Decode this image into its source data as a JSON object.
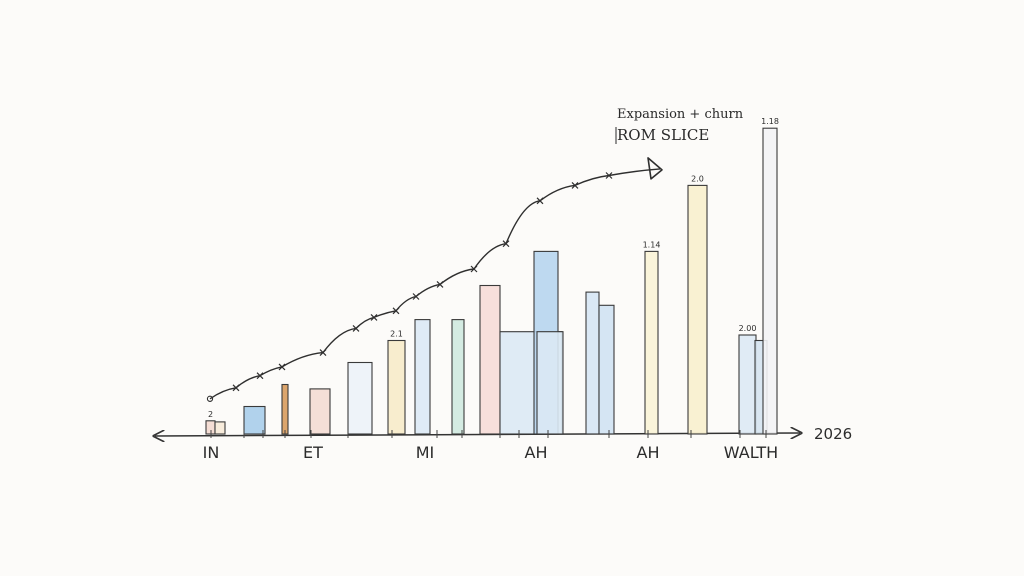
{
  "chart_data": {
    "type": "bar",
    "title": "Expansion + churn",
    "subtitle": "ROM SLICE",
    "x_end_label": "2026",
    "category_labels": [
      "IN",
      "ET",
      "MI",
      "AH",
      "AH",
      "WALTH"
    ],
    "ylim": [
      0,
      300
    ],
    "bars": [
      {
        "value": 12,
        "color": "#f4d9cf"
      },
      {
        "value": 11,
        "color": "#f7ead8"
      },
      {
        "value": 25,
        "color": "#a9cdea"
      },
      {
        "value": 45,
        "color": "#d89b5c"
      },
      {
        "value": 41,
        "color": "#f4dcd3"
      },
      {
        "value": 65,
        "color": "#ecf2f8"
      },
      {
        "value": 85,
        "color": "#f7ebc9"
      },
      {
        "value": 104,
        "color": "#dbe9f5"
      },
      {
        "value": 104,
        "color": "#cfe9df"
      },
      {
        "value": 135,
        "color": "#f6dcd7"
      },
      {
        "value": 93,
        "color": "#dce9f4"
      },
      {
        "value": 166,
        "color": "#b7d5ee"
      },
      {
        "value": 93,
        "color": "#dce9f4"
      },
      {
        "value": 129,
        "color": "#d6e6f4"
      },
      {
        "value": 117,
        "color": "#d0e2f2"
      },
      {
        "value": 166,
        "color": "#faf3d6"
      },
      {
        "value": 226,
        "color": "#f8efcd"
      },
      {
        "value": 90,
        "color": "#dde9f4"
      },
      {
        "value": 85,
        "color": "#d5e3f0"
      },
      {
        "value": 278,
        "color": "#f3f3f5"
      }
    ],
    "bar_labels": [
      {
        "bar": 0,
        "text": "2"
      },
      {
        "bar": 6,
        "text": "2.1"
      },
      {
        "bar": 15,
        "text": "1.14"
      },
      {
        "bar": 16,
        "text": "2.0"
      },
      {
        "bar": 17,
        "text": "2.00"
      },
      {
        "bar": 19,
        "text": "1.18"
      }
    ],
    "trend_line": [
      32,
      42,
      53,
      61,
      74,
      96,
      106,
      112,
      125,
      136,
      150,
      173,
      212,
      226,
      235,
      241
    ]
  }
}
